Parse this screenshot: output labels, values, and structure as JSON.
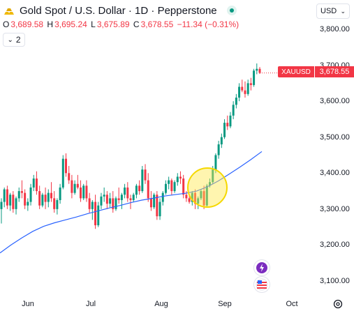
{
  "header": {
    "title": "Gold Spot / U.S. Dollar · 1D · Pepperstone",
    "ohlc": {
      "o_label": "O",
      "o_value": "3,689.58",
      "h_label": "H",
      "h_value": "3,695.24",
      "l_label": "L",
      "l_value": "3,675.89",
      "c_label": "C",
      "c_value": "3,678.55",
      "change": "−11.34 (−0.31%)"
    },
    "indicator_count": "2",
    "currency": "USD"
  },
  "price_tag": {
    "symbol": "XAUUSD",
    "price": "3,678.55"
  },
  "colors": {
    "up": "#089981",
    "down": "#f23645",
    "ma": "#2962ff",
    "highlight": "#ffe94d"
  },
  "icons": {
    "live": "live-dot-icon",
    "indicators": "chevron-down-icon",
    "settings": "gear-icon",
    "flash": "lightning-icon",
    "news": "us-flag-icon"
  },
  "chart_data": {
    "type": "candlestick",
    "symbol": "XAUUSD",
    "interval": "1D",
    "y_ticks": [
      "3,800.00",
      "3,700.00",
      "3,600.00",
      "3,500.00",
      "3,400.00",
      "3,300.00",
      "3,200.00",
      "3,100.00"
    ],
    "ylim": [
      3080,
      3840
    ],
    "x_labels": [
      "Jun",
      "Jul",
      "Aug",
      "Sep",
      "Oct"
    ],
    "last_price": 3678.55,
    "candles": [
      [
        3300,
        3330,
        3260,
        3320
      ],
      [
        3320,
        3360,
        3305,
        3355
      ],
      [
        3355,
        3365,
        3300,
        3310
      ],
      [
        3310,
        3345,
        3295,
        3340
      ],
      [
        3340,
        3350,
        3290,
        3300
      ],
      [
        3300,
        3335,
        3285,
        3330
      ],
      [
        3330,
        3360,
        3320,
        3350
      ],
      [
        3350,
        3380,
        3330,
        3345
      ],
      [
        3345,
        3355,
        3300,
        3310
      ],
      [
        3310,
        3330,
        3295,
        3320
      ],
      [
        3320,
        3370,
        3310,
        3360
      ],
      [
        3360,
        3395,
        3350,
        3385
      ],
      [
        3385,
        3405,
        3340,
        3350
      ],
      [
        3350,
        3365,
        3300,
        3310
      ],
      [
        3310,
        3345,
        3305,
        3340
      ],
      [
        3340,
        3360,
        3300,
        3320
      ],
      [
        3320,
        3355,
        3305,
        3345
      ],
      [
        3345,
        3375,
        3320,
        3330
      ],
      [
        3330,
        3350,
        3290,
        3300
      ],
      [
        3300,
        3330,
        3285,
        3325
      ],
      [
        3325,
        3370,
        3315,
        3360
      ],
      [
        3360,
        3450,
        3355,
        3440
      ],
      [
        3440,
        3455,
        3390,
        3400
      ],
      [
        3400,
        3420,
        3370,
        3380
      ],
      [
        3380,
        3395,
        3330,
        3345
      ],
      [
        3345,
        3380,
        3340,
        3370
      ],
      [
        3370,
        3395,
        3355,
        3360
      ],
      [
        3360,
        3380,
        3320,
        3330
      ],
      [
        3330,
        3370,
        3325,
        3365
      ],
      [
        3365,
        3380,
        3320,
        3330
      ],
      [
        3330,
        3345,
        3290,
        3300
      ],
      [
        3300,
        3325,
        3270,
        3320
      ],
      [
        3320,
        3340,
        3245,
        3255
      ],
      [
        3255,
        3320,
        3250,
        3310
      ],
      [
        3310,
        3345,
        3300,
        3335
      ],
      [
        3335,
        3360,
        3320,
        3340
      ],
      [
        3340,
        3350,
        3300,
        3315
      ],
      [
        3315,
        3345,
        3305,
        3330
      ],
      [
        3330,
        3350,
        3290,
        3300
      ],
      [
        3300,
        3335,
        3295,
        3330
      ],
      [
        3330,
        3360,
        3315,
        3325
      ],
      [
        3325,
        3345,
        3300,
        3340
      ],
      [
        3340,
        3370,
        3330,
        3360
      ],
      [
        3360,
        3375,
        3320,
        3330
      ],
      [
        3330,
        3340,
        3300,
        3325
      ],
      [
        3325,
        3345,
        3320,
        3340
      ],
      [
        3340,
        3370,
        3330,
        3365
      ],
      [
        3365,
        3380,
        3340,
        3350
      ],
      [
        3350,
        3420,
        3345,
        3410
      ],
      [
        3410,
        3425,
        3370,
        3380
      ],
      [
        3380,
        3400,
        3320,
        3330
      ],
      [
        3330,
        3350,
        3295,
        3305
      ],
      [
        3305,
        3345,
        3300,
        3340
      ],
      [
        3340,
        3350,
        3270,
        3280
      ],
      [
        3280,
        3330,
        3270,
        3320
      ],
      [
        3320,
        3350,
        3310,
        3345
      ],
      [
        3345,
        3380,
        3340,
        3370
      ],
      [
        3370,
        3390,
        3355,
        3380
      ],
      [
        3380,
        3385,
        3340,
        3350
      ],
      [
        3350,
        3380,
        3345,
        3375
      ],
      [
        3375,
        3400,
        3365,
        3390
      ],
      [
        3390,
        3405,
        3370,
        3385
      ],
      [
        3385,
        3395,
        3330,
        3340
      ],
      [
        3340,
        3350,
        3320,
        3330
      ],
      [
        3330,
        3340,
        3315,
        3320
      ],
      [
        3320,
        3350,
        3310,
        3345
      ],
      [
        3345,
        3355,
        3300,
        3315
      ],
      [
        3315,
        3335,
        3300,
        3330
      ],
      [
        3330,
        3355,
        3325,
        3350
      ],
      [
        3350,
        3365,
        3300,
        3310
      ],
      [
        3310,
        3370,
        3305,
        3365
      ],
      [
        3365,
        3385,
        3360,
        3375
      ],
      [
        3375,
        3420,
        3370,
        3410
      ],
      [
        3410,
        3455,
        3400,
        3450
      ],
      [
        3450,
        3490,
        3440,
        3480
      ],
      [
        3480,
        3510,
        3470,
        3500
      ],
      [
        3500,
        3550,
        3495,
        3540
      ],
      [
        3540,
        3560,
        3520,
        3530
      ],
      [
        3530,
        3570,
        3525,
        3560
      ],
      [
        3560,
        3600,
        3550,
        3590
      ],
      [
        3590,
        3620,
        3580,
        3610
      ],
      [
        3610,
        3650,
        3600,
        3640
      ],
      [
        3640,
        3660,
        3625,
        3630
      ],
      [
        3630,
        3655,
        3610,
        3620
      ],
      [
        3620,
        3660,
        3615,
        3650
      ],
      [
        3650,
        3665,
        3630,
        3645
      ],
      [
        3645,
        3690,
        3640,
        3685
      ],
      [
        3685,
        3705,
        3675,
        3690
      ],
      [
        3690,
        3695,
        3676,
        3679
      ]
    ],
    "ma": [
      3178,
      3200,
      3220,
      3238,
      3252,
      3262,
      3270,
      3278,
      3287,
      3295,
      3303,
      3310,
      3318,
      3325,
      3330,
      3336,
      3340,
      3344,
      3350,
      3362,
      3378,
      3397,
      3417,
      3438,
      3460
    ]
  }
}
